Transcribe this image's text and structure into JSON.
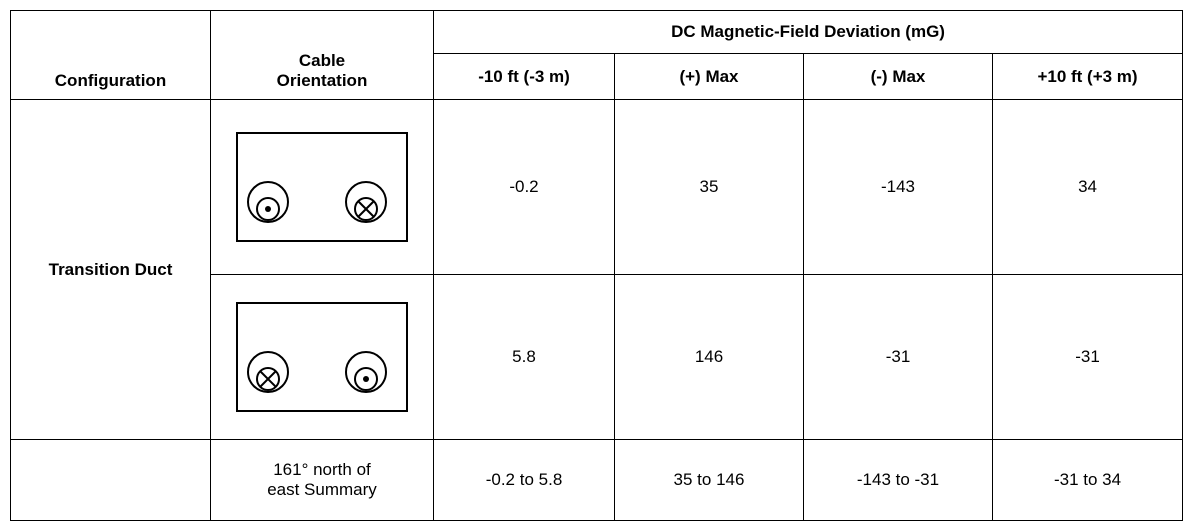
{
  "table": {
    "headers": {
      "configuration": "Configuration",
      "cable_orientation": "Cable\nOrientation",
      "group": "DC Magnetic-Field Deviation (mG)",
      "columns": [
        "-10 ft (-3 m)",
        "(+) Max",
        "(-) Max",
        "+10 ft (+3 m)"
      ]
    },
    "configuration": "Transition Duct",
    "rows": [
      [
        "-0.2",
        "35",
        "-143",
        "34"
      ],
      [
        "5.8",
        "146",
        "-31",
        "-31"
      ],
      [
        "-0.2 to 5.8",
        "35 to 146",
        "-143 to -31",
        "-31 to 34"
      ]
    ],
    "summary_label": "161° north of\neast Summary"
  }
}
